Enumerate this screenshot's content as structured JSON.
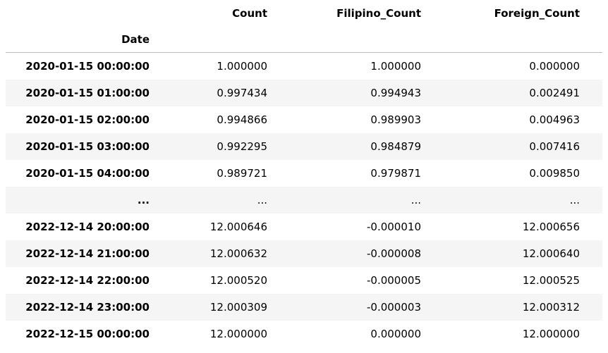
{
  "table": {
    "columns": [
      "Count",
      "Filipino_Count",
      "Foreign_Count"
    ],
    "index_name": "Date",
    "rows": [
      {
        "index": "2020-01-15 00:00:00",
        "values": [
          "1.000000",
          "1.000000",
          "0.000000"
        ]
      },
      {
        "index": "2020-01-15 01:00:00",
        "values": [
          "0.997434",
          "0.994943",
          "0.002491"
        ]
      },
      {
        "index": "2020-01-15 02:00:00",
        "values": [
          "0.994866",
          "0.989903",
          "0.004963"
        ]
      },
      {
        "index": "2020-01-15 03:00:00",
        "values": [
          "0.992295",
          "0.984879",
          "0.007416"
        ]
      },
      {
        "index": "2020-01-15 04:00:00",
        "values": [
          "0.989721",
          "0.979871",
          "0.009850"
        ]
      },
      {
        "index": "...",
        "values": [
          "...",
          "...",
          "..."
        ]
      },
      {
        "index": "2022-12-14 20:00:00",
        "values": [
          "12.000646",
          "-0.000010",
          "12.000656"
        ]
      },
      {
        "index": "2022-12-14 21:00:00",
        "values": [
          "12.000632",
          "-0.000008",
          "12.000640"
        ]
      },
      {
        "index": "2022-12-14 22:00:00",
        "values": [
          "12.000520",
          "-0.000005",
          "12.000525"
        ]
      },
      {
        "index": "2022-12-14 23:00:00",
        "values": [
          "12.000309",
          "-0.000003",
          "12.000312"
        ]
      },
      {
        "index": "2022-12-15 00:00:00",
        "values": [
          "12.000000",
          "0.000000",
          "12.000000"
        ]
      }
    ]
  }
}
